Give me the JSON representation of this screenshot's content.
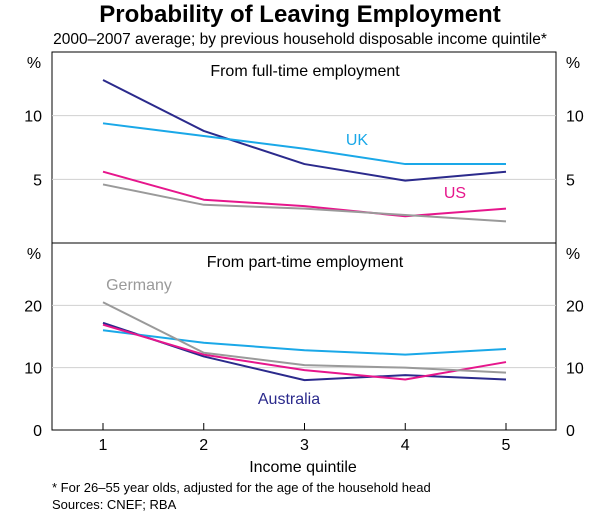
{
  "title": "Probability of Leaving Employment",
  "subtitle": "2000–2007 average; by previous household disposable income quintile*",
  "xlabel": "Income quintile",
  "footnote": "*    For 26–55 year olds, adjusted for the age of the household head",
  "sources": "Sources: CNEF; RBA",
  "unit": "%",
  "colors": {
    "Australia": "#2b2a8c",
    "UK": "#1aa8e8",
    "US": "#e6168c",
    "Germany": "#9a9a9a"
  },
  "chart_data": [
    {
      "type": "line",
      "title": "From full-time employment",
      "x": [
        1,
        2,
        3,
        4,
        5
      ],
      "ylim": [
        0,
        15
      ],
      "yticks": [
        5,
        10
      ],
      "series": [
        {
          "name": "Australia",
          "values": [
            12.8,
            8.8,
            6.2,
            4.9,
            5.6
          ]
        },
        {
          "name": "UK",
          "values": [
            9.4,
            8.4,
            7.4,
            6.2,
            6.2
          ]
        },
        {
          "name": "US",
          "values": [
            5.6,
            3.4,
            2.9,
            2.1,
            2.7
          ]
        },
        {
          "name": "Germany",
          "values": [
            4.6,
            3.0,
            2.7,
            2.2,
            1.7
          ]
        }
      ],
      "labels": [
        {
          "series": "UK",
          "text": "UK"
        },
        {
          "series": "US",
          "text": "US"
        }
      ]
    },
    {
      "type": "line",
      "title": "From part-time employment",
      "x": [
        1,
        2,
        3,
        4,
        5
      ],
      "ylim": [
        0,
        30
      ],
      "yticks": [
        0,
        10,
        20
      ],
      "series": [
        {
          "name": "Australia",
          "values": [
            17.2,
            11.8,
            8.0,
            8.8,
            8.1
          ]
        },
        {
          "name": "UK",
          "values": [
            16.0,
            14.0,
            12.8,
            12.1,
            13.0
          ]
        },
        {
          "name": "US",
          "values": [
            16.9,
            12.1,
            9.6,
            8.1,
            10.9
          ]
        },
        {
          "name": "Germany",
          "values": [
            20.5,
            12.4,
            10.4,
            10.0,
            9.2
          ]
        }
      ],
      "labels": [
        {
          "series": "Germany",
          "text": "Germany"
        },
        {
          "series": "Australia",
          "text": "Australia"
        }
      ]
    }
  ],
  "xticks": [
    "1",
    "2",
    "3",
    "4",
    "5"
  ]
}
